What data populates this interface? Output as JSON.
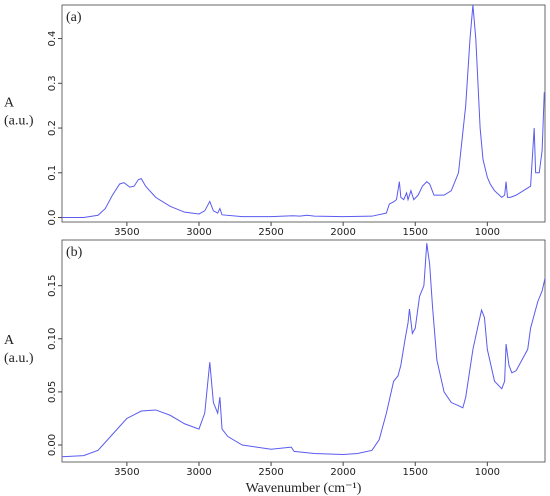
{
  "chart_data": [
    {
      "type": "line",
      "label": "(a)",
      "ylabel": [
        "A",
        "(a.u.)"
      ],
      "color": "#5a5af0",
      "xlim": [
        3950,
        600
      ],
      "xticks": [
        3500,
        3000,
        2500,
        2000,
        1500,
        1000
      ],
      "ylim": [
        -0.01,
        0.475
      ],
      "yticks": [
        {
          "value": 0,
          "label": "0.0"
        },
        0.1,
        0.2,
        0.3,
        0.4
      ],
      "x": [
        3950,
        3800,
        3700,
        3650,
        3600,
        3550,
        3520,
        3480,
        3450,
        3420,
        3400,
        3370,
        3300,
        3200,
        3100,
        3000,
        2960,
        2925,
        2900,
        2870,
        2855,
        2840,
        2700,
        2500,
        2350,
        2300,
        2250,
        2200,
        2000,
        1800,
        1700,
        1680,
        1650,
        1630,
        1610,
        1600,
        1580,
        1560,
        1550,
        1530,
        1510,
        1480,
        1450,
        1420,
        1400,
        1370,
        1300,
        1250,
        1200,
        1150,
        1120,
        1100,
        1080,
        1050,
        1030,
        1000,
        980,
        950,
        900,
        880,
        870,
        860,
        840,
        800,
        750,
        700,
        675,
        665,
        640,
        620,
        605
      ],
      "values": [
        0.0,
        0.0,
        0.005,
        0.02,
        0.05,
        0.075,
        0.078,
        0.068,
        0.07,
        0.085,
        0.087,
        0.07,
        0.045,
        0.025,
        0.012,
        0.008,
        0.015,
        0.036,
        0.015,
        0.01,
        0.02,
        0.006,
        0.002,
        0.002,
        0.004,
        0.003,
        0.005,
        0.003,
        0.002,
        0.003,
        0.01,
        0.03,
        0.035,
        0.04,
        0.08,
        0.045,
        0.04,
        0.055,
        0.04,
        0.06,
        0.04,
        0.05,
        0.07,
        0.08,
        0.075,
        0.05,
        0.05,
        0.06,
        0.1,
        0.25,
        0.4,
        0.475,
        0.4,
        0.2,
        0.13,
        0.09,
        0.075,
        0.06,
        0.045,
        0.05,
        0.08,
        0.045,
        0.045,
        0.05,
        0.06,
        0.07,
        0.2,
        0.1,
        0.1,
        0.15,
        0.28
      ]
    },
    {
      "type": "line",
      "label": "(b)",
      "ylabel": [
        "A",
        "(a.u.)"
      ],
      "xlabel": "Wavenumber (cm⁻¹)",
      "color": "#5a5af0",
      "xlim": [
        3950,
        600
      ],
      "xticks": [
        3500,
        3000,
        2500,
        2000,
        1500,
        1000
      ],
      "ylim": [
        -0.016,
        0.193
      ],
      "yticks": [
        {
          "value": 0,
          "label": "0.00"
        },
        {
          "value": 0.05,
          "label": "0.05"
        },
        {
          "value": 0.1,
          "label": "0.10"
        },
        {
          "value": 0.15,
          "label": "0.15"
        }
      ],
      "x": [
        3950,
        3800,
        3700,
        3600,
        3500,
        3400,
        3300,
        3200,
        3100,
        3000,
        2960,
        2925,
        2900,
        2870,
        2855,
        2840,
        2800,
        2700,
        2500,
        2360,
        2340,
        2200,
        2000,
        1900,
        1800,
        1750,
        1700,
        1650,
        1620,
        1600,
        1570,
        1550,
        1540,
        1520,
        1500,
        1470,
        1440,
        1420,
        1400,
        1380,
        1350,
        1300,
        1250,
        1200,
        1170,
        1150,
        1100,
        1060,
        1040,
        1020,
        1000,
        950,
        900,
        880,
        870,
        850,
        830,
        800,
        760,
        720,
        700,
        680,
        650,
        620,
        600
      ],
      "values": [
        -0.011,
        -0.01,
        -0.005,
        0.01,
        0.025,
        0.032,
        0.033,
        0.028,
        0.02,
        0.015,
        0.03,
        0.078,
        0.04,
        0.03,
        0.045,
        0.015,
        0.008,
        0.0,
        -0.004,
        -0.002,
        -0.006,
        -0.008,
        -0.009,
        -0.008,
        -0.005,
        0.005,
        0.03,
        0.06,
        0.065,
        0.075,
        0.1,
        0.115,
        0.128,
        0.105,
        0.11,
        0.14,
        0.15,
        0.19,
        0.17,
        0.13,
        0.08,
        0.05,
        0.04,
        0.037,
        0.035,
        0.045,
        0.09,
        0.115,
        0.127,
        0.12,
        0.09,
        0.06,
        0.053,
        0.06,
        0.095,
        0.075,
        0.068,
        0.07,
        0.08,
        0.09,
        0.11,
        0.12,
        0.135,
        0.145,
        0.157
      ]
    }
  ]
}
